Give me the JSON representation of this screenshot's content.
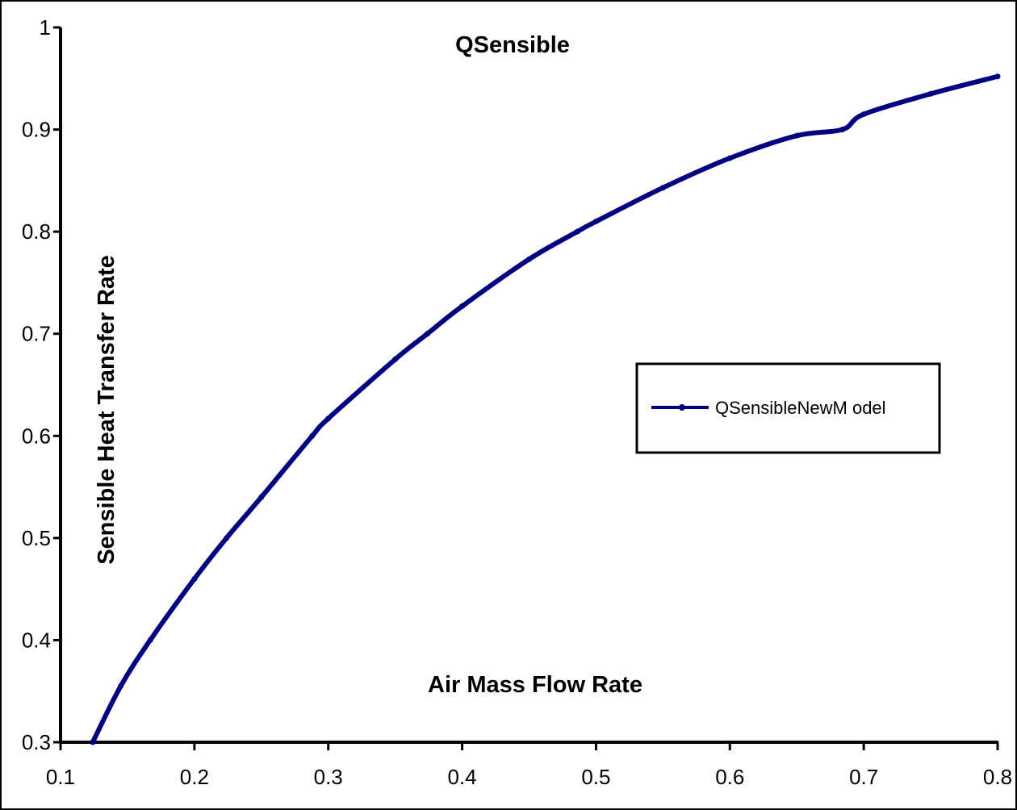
{
  "chart_data": {
    "type": "line",
    "title": "QSensible",
    "xlabel": "Air Mass Flow Rate",
    "ylabel": "Sensible Heat Transfer Rate",
    "xlim": [
      0.1,
      0.8
    ],
    "ylim": [
      0.3,
      1
    ],
    "xticks": [
      "0.1",
      "0.2",
      "0.3",
      "0.4",
      "0.5",
      "0.6",
      "0.7",
      "0.8"
    ],
    "yticks": [
      "0.3",
      "0.4",
      "0.5",
      "0.6",
      "0.7",
      "0.8",
      "0.9",
      "1"
    ],
    "grid": false,
    "legend_position": "right",
    "series": [
      {
        "name": "QSensibleNewM odel",
        "color": "#000080",
        "x": [
          0.124,
          0.145,
          0.167,
          0.2,
          0.224,
          0.25,
          0.288,
          0.3,
          0.35,
          0.374,
          0.4,
          0.45,
          0.486,
          0.5,
          0.55,
          0.6,
          0.65,
          0.684,
          0.7,
          0.75,
          0.8
        ],
        "y": [
          0.3,
          0.355,
          0.4,
          0.46,
          0.5,
          0.54,
          0.6,
          0.617,
          0.675,
          0.7,
          0.727,
          0.773,
          0.8,
          0.81,
          0.843,
          0.872,
          0.894,
          0.9,
          0.915,
          0.935,
          0.952
        ]
      }
    ]
  }
}
